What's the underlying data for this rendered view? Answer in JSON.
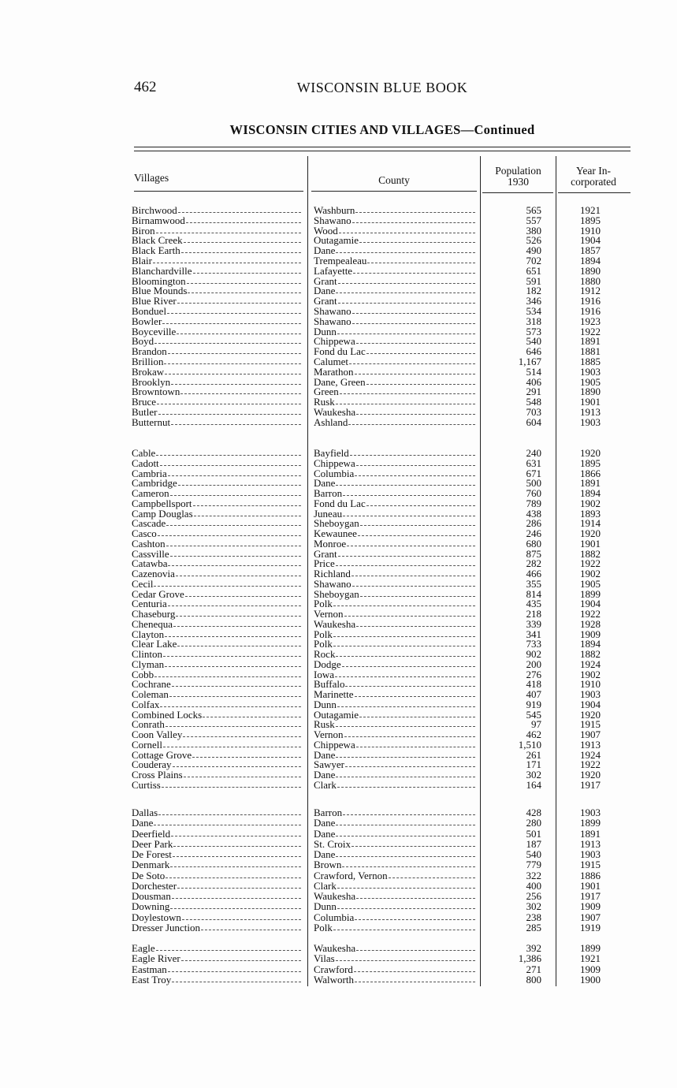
{
  "page_number": "462",
  "running_head": "WISCONSIN BLUE BOOK",
  "title": "WISCONSIN CITIES AND VILLAGES—Continued",
  "columns": {
    "villages": "Villages",
    "county": "County",
    "population_line1": "Population",
    "population_line2": "1930",
    "year_line1": "Year In-",
    "year_line2": "corporated"
  },
  "groups": [
    {
      "rows": [
        [
          "Birchwood",
          "Washburn",
          "565",
          "1921"
        ],
        [
          "Birnamwood",
          "Shawano",
          "557",
          "1895"
        ],
        [
          "Biron",
          "Wood",
          "380",
          "1910"
        ],
        [
          "Black Creek",
          "Outagamie",
          "526",
          "1904"
        ],
        [
          "Black Earth",
          "Dane",
          "490",
          "1857"
        ],
        [
          "Blair",
          "Trempealeau",
          "702",
          "1894"
        ],
        [
          "Blanchardville",
          "Lafayette",
          "651",
          "1890"
        ],
        [
          "Bloomington",
          "Grant",
          "591",
          "1880"
        ],
        [
          "Blue Mounds",
          "Dane",
          "182",
          "1912"
        ],
        [
          "Blue River",
          "Grant",
          "346",
          "1916"
        ],
        [
          "Bonduel",
          "Shawano",
          "534",
          "1916"
        ],
        [
          "Bowler",
          "Shawano",
          "318",
          "1923"
        ],
        [
          "Boyceville",
          "Dunn",
          "573",
          "1922"
        ],
        [
          "Boyd",
          "Chippewa",
          "540",
          "1891"
        ],
        [
          "Brandon",
          "Fond du Lac",
          "646",
          "1881"
        ],
        [
          "Brillion",
          "Calumet",
          "1,167",
          "1885"
        ],
        [
          "Brokaw",
          "Marathon",
          "514",
          "1903"
        ],
        [
          "Brooklyn",
          "Dane, Green",
          "406",
          "1905"
        ],
        [
          "Browntown",
          "Green",
          "291",
          "1890"
        ],
        [
          "Bruce",
          "Rusk",
          "548",
          "1901"
        ],
        [
          "Butler",
          "Waukesha",
          "703",
          "1913"
        ],
        [
          "Butternut",
          "Ashland",
          "604",
          "1903"
        ]
      ]
    },
    {
      "rows": [
        [
          "Cable",
          "Bayfield",
          "240",
          "1920"
        ],
        [
          "Cadott",
          "Chippewa",
          "631",
          "1895"
        ],
        [
          "Cambria",
          "Columbia",
          "671",
          "1866"
        ],
        [
          "Cambridge",
          "Dane",
          "500",
          "1891"
        ],
        [
          "Cameron",
          "Barron",
          "760",
          "1894"
        ],
        [
          "Campbellsport",
          "Fond du Lac",
          "789",
          "1902"
        ],
        [
          "Camp Douglas",
          "Juneau",
          "438",
          "1893"
        ],
        [
          "Cascade",
          "Sheboygan",
          "286",
          "1914"
        ],
        [
          "Casco",
          "Kewaunee",
          "246",
          "1920"
        ],
        [
          "Cashton",
          "Monroe",
          "680",
          "1901"
        ],
        [
          "Cassville",
          "Grant",
          "875",
          "1882"
        ],
        [
          "Catawba",
          "Price",
          "282",
          "1922"
        ],
        [
          "Cazenovia",
          "Richland",
          "466",
          "1902"
        ],
        [
          "Cecil",
          "Shawano",
          "355",
          "1905"
        ],
        [
          "Cedar Grove",
          "Sheboygan",
          "814",
          "1899"
        ],
        [
          "Centuria",
          "Polk",
          "435",
          "1904"
        ],
        [
          "Chaseburg",
          "Vernon",
          "218",
          "1922"
        ],
        [
          "Chenequa",
          "Waukesha",
          "339",
          "1928"
        ],
        [
          "Clayton",
          "Polk",
          "341",
          "1909"
        ],
        [
          "Clear Lake",
          "Polk",
          "733",
          "1894"
        ],
        [
          "Clinton",
          "Rock",
          "902",
          "1882"
        ],
        [
          "Clyman",
          "Dodge",
          "200",
          "1924"
        ],
        [
          "Cobb",
          "Iowa",
          "276",
          "1902"
        ],
        [
          "Cochrane",
          "Buffalo",
          "418",
          "1910"
        ],
        [
          "Coleman",
          "Marinette",
          "407",
          "1903"
        ],
        [
          "Colfax",
          "Dunn",
          "919",
          "1904"
        ],
        [
          "Combined Locks",
          "Outagamie",
          "545",
          "1920"
        ],
        [
          "Conrath",
          "Rusk",
          "97",
          "1915"
        ],
        [
          "Coon Valley",
          "Vernon",
          "462",
          "1907"
        ],
        [
          "Cornell",
          "Chippewa",
          "1,510",
          "1913"
        ],
        [
          "Cottage Grove",
          "Dane",
          "261",
          "1924"
        ],
        [
          "Couderay",
          "Sawyer",
          "171",
          "1922"
        ],
        [
          "Cross Plains",
          "Dane",
          "302",
          "1920"
        ],
        [
          "Curtiss",
          "Clark",
          "164",
          "1917"
        ]
      ]
    },
    {
      "rows": [
        [
          "Dallas",
          "Barron",
          "428",
          "1903"
        ],
        [
          "Dane",
          "Dane",
          "280",
          "1899"
        ],
        [
          "Deerfield",
          "Dane",
          "501",
          "1891"
        ],
        [
          "Deer Park",
          "St. Croix",
          "187",
          "1913"
        ],
        [
          "De Forest",
          "Dane",
          "540",
          "1903"
        ],
        [
          "Denmark",
          "Brown",
          "779",
          "1915"
        ],
        [
          "De Soto",
          "Crawford, Vernon",
          "322",
          "1886"
        ],
        [
          "Dorchester",
          "Clark",
          "400",
          "1901"
        ],
        [
          "Dousman",
          "Waukesha",
          "256",
          "1917"
        ],
        [
          "Downing",
          "Dunn",
          "302",
          "1909"
        ],
        [
          "Doylestown",
          "Columbia",
          "238",
          "1907"
        ],
        [
          "Dresser Junction",
          "Polk",
          "285",
          "1919"
        ]
      ]
    },
    {
      "rows": [
        [
          "Eagle",
          "Waukesha",
          "392",
          "1899"
        ],
        [
          "Eagle River",
          "Vilas",
          "1,386",
          "1921"
        ],
        [
          "Eastman",
          "Crawford",
          "271",
          "1909"
        ],
        [
          "East Troy",
          "Walworth",
          "800",
          "1900"
        ]
      ]
    }
  ]
}
